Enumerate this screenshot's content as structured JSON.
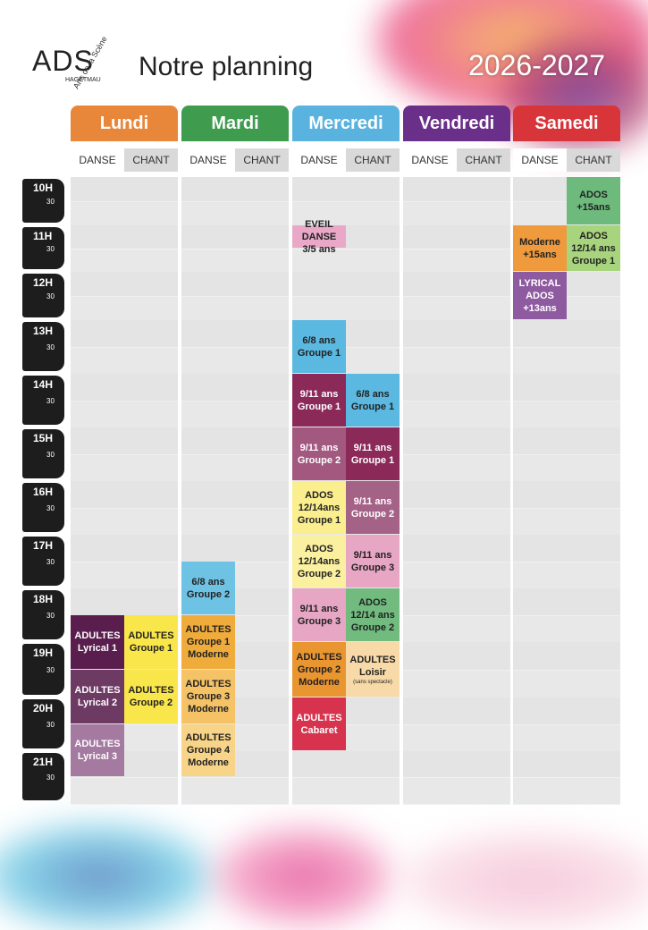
{
  "header": {
    "logo": "ADS",
    "logo_town": "HAGETMAU",
    "logo_tagline": "Arts de la Scène",
    "title": "Notre planning",
    "season": "2026-2027"
  },
  "days": [
    {
      "name": "Lundi",
      "color": "#e8873a",
      "subcolumns": [
        "DANSE",
        "CHANT"
      ]
    },
    {
      "name": "Mardi",
      "color": "#3f9c4f",
      "subcolumns": [
        "DANSE",
        "CHANT"
      ]
    },
    {
      "name": "Mercredi",
      "color": "#5ab3df",
      "subcolumns": [
        "DANSE",
        "CHANT"
      ]
    },
    {
      "name": "Vendredi",
      "color": "#6a2f89",
      "subcolumns": [
        "DANSE",
        "CHANT"
      ]
    },
    {
      "name": "Samedi",
      "color": "#d8353a",
      "subcolumns": [
        "DANSE",
        "CHANT"
      ]
    }
  ],
  "hours": [
    "10H",
    "11H",
    "12H",
    "13H",
    "14H",
    "15H",
    "16H",
    "17H",
    "18H",
    "19H",
    "20H",
    "21H"
  ],
  "half_label": "30",
  "events": [
    {
      "day": 0,
      "col": 0,
      "start": 18.5,
      "end": 19.5,
      "color": "#5a1e4e",
      "text_color": "#fff",
      "lines": [
        "ADULTES",
        "Lyrical 1"
      ]
    },
    {
      "day": 0,
      "col": 0,
      "start": 19.5,
      "end": 20.5,
      "color": "#6c3a63",
      "text_color": "#fff",
      "lines": [
        "ADULTES",
        "Lyrical 2"
      ]
    },
    {
      "day": 0,
      "col": 0,
      "start": 20.5,
      "end": 21.5,
      "color": "#a47aa0",
      "text_color": "#fff",
      "lines": [
        "ADULTES",
        "Lyrical 3"
      ]
    },
    {
      "day": 0,
      "col": 1,
      "start": 18.5,
      "end": 19.5,
      "color": "#f9e64a",
      "text_color": "#222",
      "lines": [
        "ADULTES",
        "Groupe 1"
      ]
    },
    {
      "day": 0,
      "col": 1,
      "start": 19.5,
      "end": 20.5,
      "color": "#f9e64a",
      "text_color": "#222",
      "lines": [
        "ADULTES",
        "Groupe 2"
      ]
    },
    {
      "day": 1,
      "col": 0,
      "start": 17.5,
      "end": 18.5,
      "color": "#6ec3e4",
      "text_color": "#222",
      "lines": [
        "6/8 ans",
        "Groupe 2"
      ]
    },
    {
      "day": 1,
      "col": 0,
      "start": 18.5,
      "end": 19.5,
      "color": "#f0ac3a",
      "text_color": "#222",
      "lines": [
        "ADULTES",
        "Groupe 1",
        "Moderne"
      ]
    },
    {
      "day": 1,
      "col": 0,
      "start": 19.5,
      "end": 20.5,
      "color": "#f5c266",
      "text_color": "#222",
      "lines": [
        "ADULTES",
        "Groupe 3",
        "Moderne"
      ]
    },
    {
      "day": 1,
      "col": 0,
      "start": 20.5,
      "end": 21.5,
      "color": "#f8d488",
      "text_color": "#222",
      "lines": [
        "ADULTES",
        "Groupe 4",
        "Moderne"
      ]
    },
    {
      "day": 2,
      "col": 0,
      "start": 11,
      "end": 11.5,
      "color": "#e9a8c8",
      "text_color": "#222",
      "lines": [
        "EVEIL DANSE",
        "3/5 ans"
      ]
    },
    {
      "day": 2,
      "col": 0,
      "start": 13,
      "end": 14,
      "color": "#5bb8e0",
      "text_color": "#222",
      "lines": [
        "6/8 ans",
        "Groupe 1"
      ]
    },
    {
      "day": 2,
      "col": 0,
      "start": 14,
      "end": 15,
      "color": "#8b2a59",
      "text_color": "#fff",
      "lines": [
        "9/11 ans",
        "Groupe 1"
      ]
    },
    {
      "day": 2,
      "col": 0,
      "start": 15,
      "end": 16,
      "color": "#a2587f",
      "text_color": "#fff",
      "lines": [
        "9/11 ans",
        "Groupe 2"
      ]
    },
    {
      "day": 2,
      "col": 0,
      "start": 16,
      "end": 17,
      "color": "#fbee8f",
      "text_color": "#222",
      "lines": [
        "ADOS",
        "12/14ans",
        "Groupe 1"
      ]
    },
    {
      "day": 2,
      "col": 0,
      "start": 17,
      "end": 18,
      "color": "#fbf0a0",
      "text_color": "#222",
      "lines": [
        "ADOS",
        "12/14ans",
        "Groupe 2"
      ]
    },
    {
      "day": 2,
      "col": 0,
      "start": 18,
      "end": 19,
      "color": "#e6a6c4",
      "text_color": "#222",
      "lines": [
        "9/11 ans",
        "Groupe 3"
      ]
    },
    {
      "day": 2,
      "col": 0,
      "start": 19,
      "end": 20,
      "color": "#e99530",
      "text_color": "#222",
      "lines": [
        "ADULTES",
        "Groupe 2",
        "Moderne"
      ]
    },
    {
      "day": 2,
      "col": 0,
      "start": 20,
      "end": 21,
      "color": "#d8334e",
      "text_color": "#fff",
      "lines": [
        "ADULTES",
        "Cabaret"
      ]
    },
    {
      "day": 2,
      "col": 1,
      "start": 14,
      "end": 15,
      "color": "#5bb8e0",
      "text_color": "#222",
      "lines": [
        "6/8 ans",
        "Groupe 1"
      ]
    },
    {
      "day": 2,
      "col": 1,
      "start": 15,
      "end": 16,
      "color": "#8b2a59",
      "text_color": "#fff",
      "lines": [
        "9/11 ans",
        "Groupe 1"
      ]
    },
    {
      "day": 2,
      "col": 1,
      "start": 16,
      "end": 17,
      "color": "#a56287",
      "text_color": "#fff",
      "lines": [
        "9/11 ans",
        "Groupe 2"
      ]
    },
    {
      "day": 2,
      "col": 1,
      "start": 17,
      "end": 18,
      "color": "#e6a6c4",
      "text_color": "#222",
      "lines": [
        "9/11 ans",
        "Groupe 3"
      ]
    },
    {
      "day": 2,
      "col": 1,
      "start": 18,
      "end": 19,
      "color": "#71bb7f",
      "text_color": "#222",
      "lines": [
        "ADOS",
        "12/14 ans",
        "Groupe 2"
      ]
    },
    {
      "day": 2,
      "col": 1,
      "start": 19,
      "end": 20,
      "color": "#f8d9a8",
      "text_color": "#222",
      "lines": [
        "ADULTES",
        "Loisir"
      ],
      "note": "(sans spectacle)"
    },
    {
      "day": 4,
      "col": 0,
      "start": 11,
      "end": 12,
      "color": "#ef9a3c",
      "text_color": "#222",
      "lines": [
        "Moderne",
        "+15ans"
      ]
    },
    {
      "day": 4,
      "col": 0,
      "start": 12,
      "end": 13,
      "color": "#8e5aa0",
      "text_color": "#fff",
      "lines": [
        "LYRICAL",
        "ADOS",
        "+13ans"
      ]
    },
    {
      "day": 4,
      "col": 1,
      "start": 10,
      "end": 11,
      "color": "#6dba7c",
      "text_color": "#222",
      "lines": [
        "ADOS",
        "+15ans"
      ]
    },
    {
      "day": 4,
      "col": 1,
      "start": 11,
      "end": 12,
      "color": "#a8d47d",
      "text_color": "#222",
      "lines": [
        "ADOS",
        "12/14 ans",
        "Groupe 1"
      ]
    }
  ]
}
